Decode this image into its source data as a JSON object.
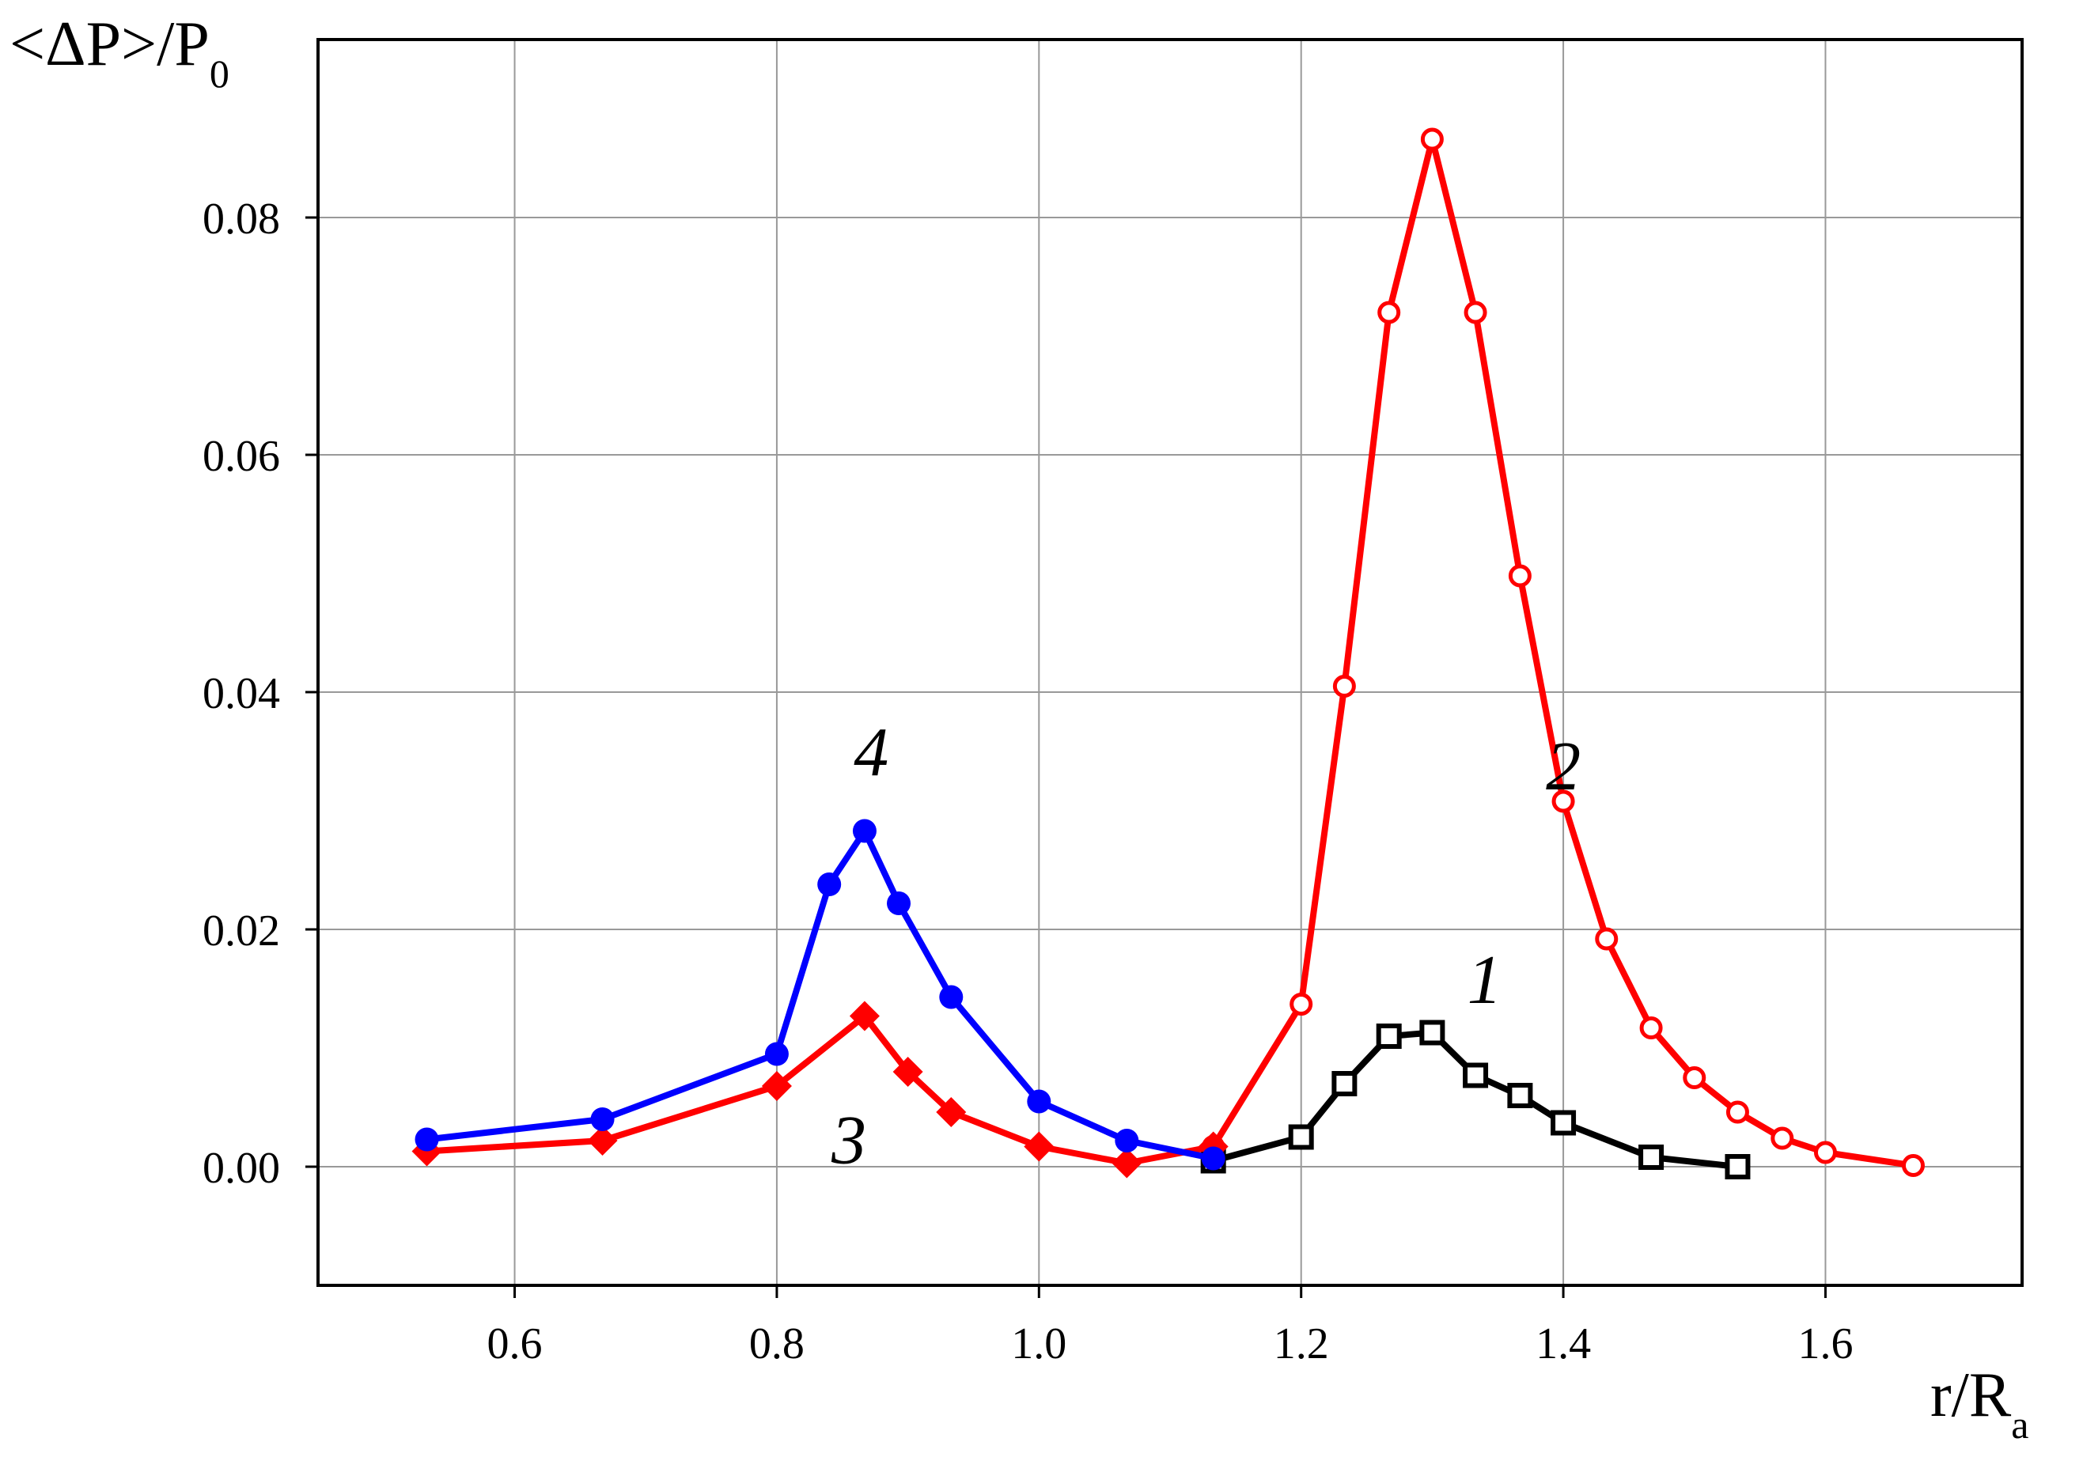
{
  "chart_data": {
    "type": "line",
    "ylabel": {
      "main": "<ΔP>/P",
      "sub": "0"
    },
    "xlabel": {
      "main": "r/R",
      "sub": "a"
    },
    "xlim": [
      0.45,
      1.75
    ],
    "ylim": [
      -0.01,
      0.095
    ],
    "grid": true,
    "x_ticks": [
      {
        "value": 0.6,
        "label": "0.6"
      },
      {
        "value": 0.8,
        "label": "0.8"
      },
      {
        "value": 1.0,
        "label": "1.0"
      },
      {
        "value": 1.2,
        "label": "1.2"
      },
      {
        "value": 1.4,
        "label": "1.4"
      },
      {
        "value": 1.6,
        "label": "1.6"
      }
    ],
    "y_ticks": [
      {
        "value": 0.0,
        "label": "0.00"
      },
      {
        "value": 0.02,
        "label": "0.02"
      },
      {
        "value": 0.04,
        "label": "0.04"
      },
      {
        "value": 0.06,
        "label": "0.06"
      },
      {
        "value": 0.08,
        "label": "0.08"
      }
    ],
    "series": [
      {
        "label": "1",
        "color": "#000000",
        "marker": "open-square",
        "label_at": [
          1.34,
          0.0138
        ],
        "points": [
          [
            1.133,
            0.0005
          ],
          [
            1.2,
            0.0025
          ],
          [
            1.233,
            0.007
          ],
          [
            1.267,
            0.011
          ],
          [
            1.3,
            0.0113
          ],
          [
            1.333,
            0.0077
          ],
          [
            1.367,
            0.006
          ],
          [
            1.4,
            0.0037
          ],
          [
            1.467,
            0.0008
          ],
          [
            1.533,
            0.0
          ]
        ]
      },
      {
        "label": "2",
        "color": "#ff0000",
        "marker": "open-circle",
        "label_at": [
          1.4,
          0.0318
        ],
        "points": [
          [
            1.133,
            0.0017
          ],
          [
            1.2,
            0.0137
          ],
          [
            1.233,
            0.0405
          ],
          [
            1.267,
            0.072
          ],
          [
            1.3,
            0.0866
          ],
          [
            1.333,
            0.072
          ],
          [
            1.367,
            0.0498
          ],
          [
            1.4,
            0.0308
          ],
          [
            1.433,
            0.0192
          ],
          [
            1.467,
            0.0117
          ],
          [
            1.5,
            0.0075
          ],
          [
            1.533,
            0.0046
          ],
          [
            1.567,
            0.0024
          ],
          [
            1.6,
            0.0012
          ],
          [
            1.667,
            0.0001
          ]
        ]
      },
      {
        "label": "3",
        "color": "#ff0000",
        "marker": "filled-diamond",
        "label_at": [
          0.855,
          0.0003
        ],
        "points": [
          [
            0.533,
            0.0013
          ],
          [
            0.667,
            0.0022
          ],
          [
            0.8,
            0.0068
          ],
          [
            0.867,
            0.0127
          ],
          [
            0.9,
            0.008
          ],
          [
            0.933,
            0.0046
          ],
          [
            1.0,
            0.0017
          ],
          [
            1.067,
            0.0003
          ],
          [
            1.133,
            0.0017
          ]
        ]
      },
      {
        "label": "4",
        "color": "#0000ff",
        "marker": "filled-circle",
        "label_at": [
          0.872,
          0.033
        ],
        "points": [
          [
            0.533,
            0.0023
          ],
          [
            0.667,
            0.004
          ],
          [
            0.8,
            0.0095
          ],
          [
            0.84,
            0.0238
          ],
          [
            0.867,
            0.0283
          ],
          [
            0.893,
            0.0222
          ],
          [
            0.933,
            0.0143
          ],
          [
            1.0,
            0.0055
          ],
          [
            1.067,
            0.0022
          ],
          [
            1.133,
            0.0007
          ]
        ]
      }
    ]
  }
}
